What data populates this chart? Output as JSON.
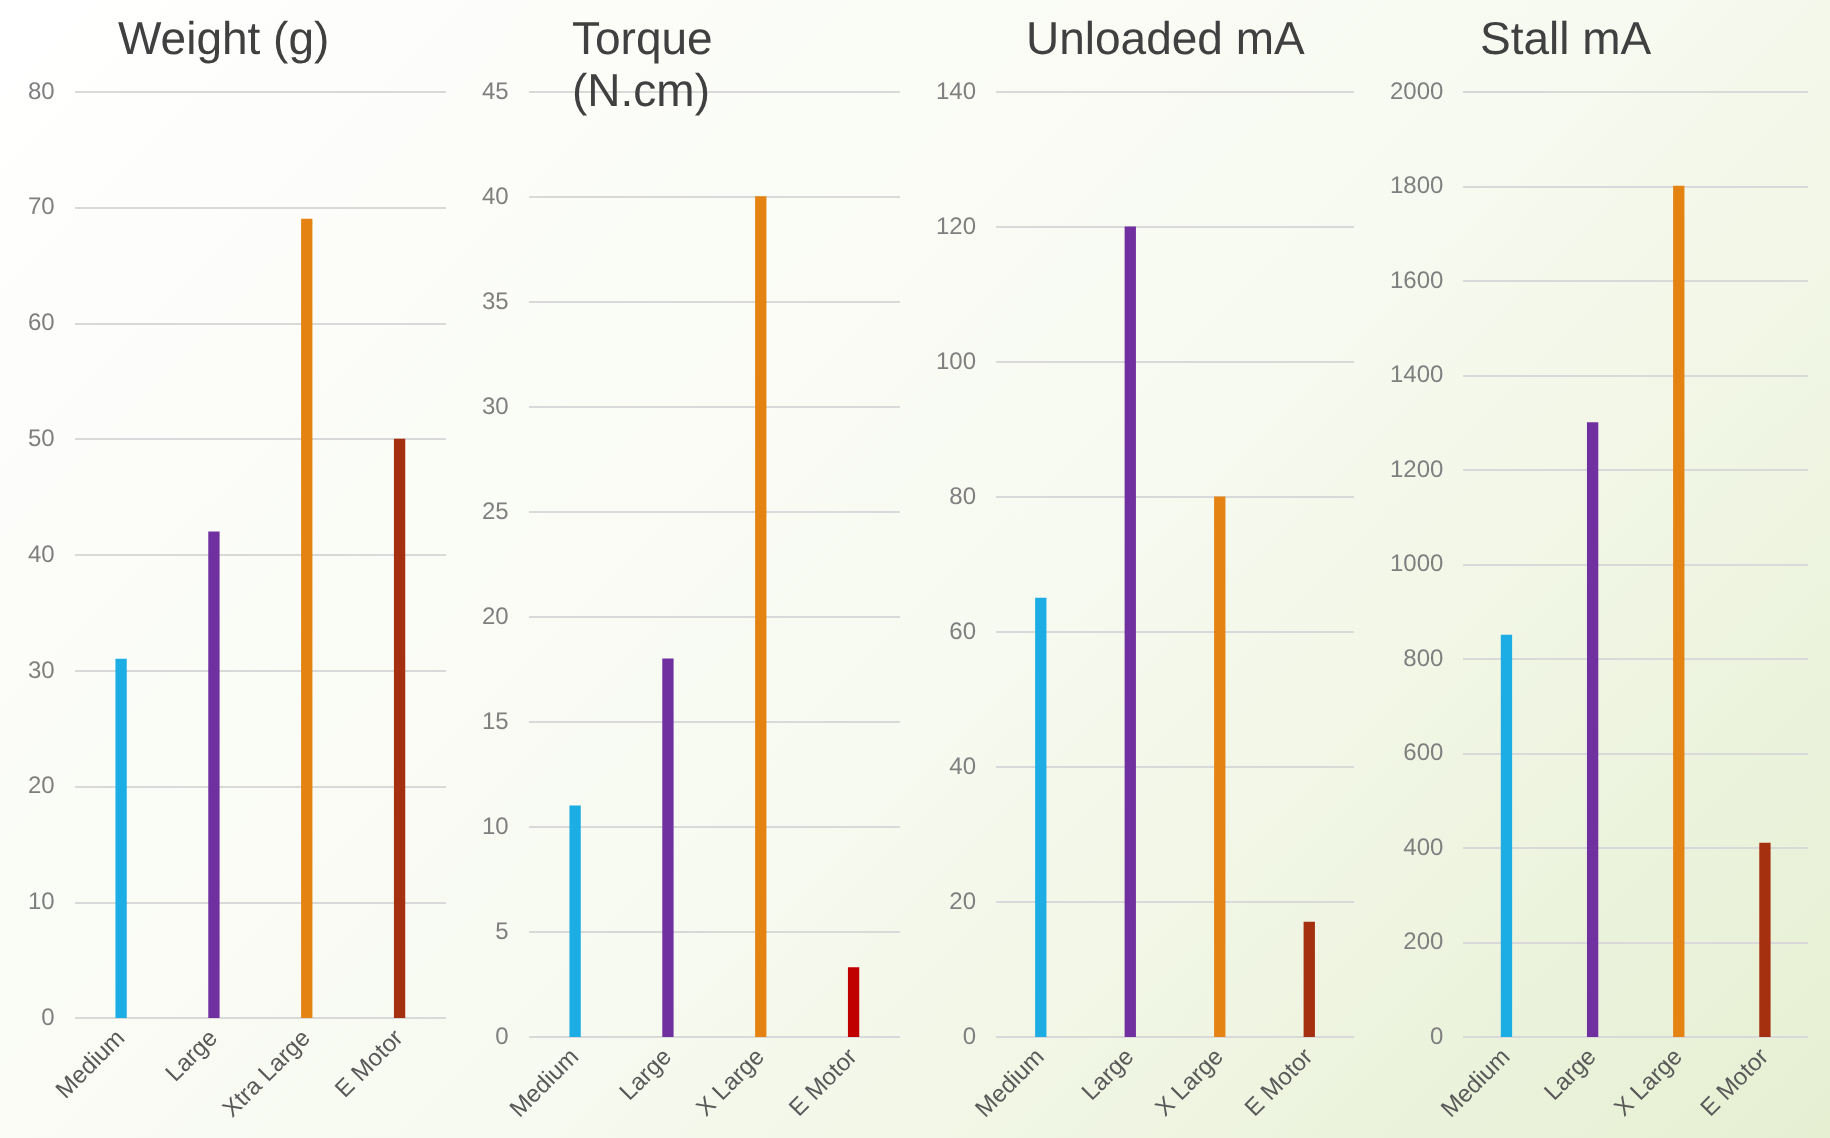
{
  "chart_data": [
    {
      "type": "bar",
      "title": "Weight (g)",
      "categories": [
        "Medium",
        "Large",
        "Xtra Large",
        "E Motor"
      ],
      "values": [
        31,
        42,
        69,
        50
      ],
      "colors": [
        "#1cade4",
        "#7030a0",
        "#e48312",
        "#a5300f"
      ],
      "ylim": [
        0,
        80
      ],
      "yticks": [
        0,
        10,
        20,
        30,
        40,
        50,
        60,
        70,
        80
      ],
      "grid": "y"
    },
    {
      "type": "bar",
      "title": "Torque\n(N.cm)",
      "categories": [
        "Medium",
        "Large",
        "X Large",
        "E Motor"
      ],
      "values": [
        11,
        18,
        40,
        3.3
      ],
      "colors": [
        "#1cade4",
        "#7030a0",
        "#e48312",
        "#c00000"
      ],
      "ylim": [
        0,
        45
      ],
      "yticks": [
        0,
        5,
        10,
        15,
        20,
        25,
        30,
        35,
        40,
        45
      ],
      "grid": "y"
    },
    {
      "type": "bar",
      "title": "Unloaded mA",
      "categories": [
        "Medium",
        "Large",
        "X Large",
        "E Motor"
      ],
      "values": [
        65,
        120,
        80,
        17
      ],
      "colors": [
        "#1cade4",
        "#7030a0",
        "#e48312",
        "#a5300f"
      ],
      "ylim": [
        0,
        140
      ],
      "yticks": [
        0,
        20,
        40,
        60,
        80,
        100,
        120,
        140
      ],
      "grid": "y"
    },
    {
      "type": "bar",
      "title": "Stall mA",
      "categories": [
        "Medium",
        "Large",
        "X Large",
        "E Motor"
      ],
      "values": [
        850,
        1300,
        1800,
        410
      ],
      "colors": [
        "#1cade4",
        "#7030a0",
        "#e48312",
        "#a5300f"
      ],
      "ylim": [
        0,
        2000
      ],
      "yticks": [
        0,
        200,
        400,
        600,
        800,
        1000,
        1200,
        1400,
        1600,
        1800,
        2000
      ],
      "grid": "y"
    }
  ]
}
